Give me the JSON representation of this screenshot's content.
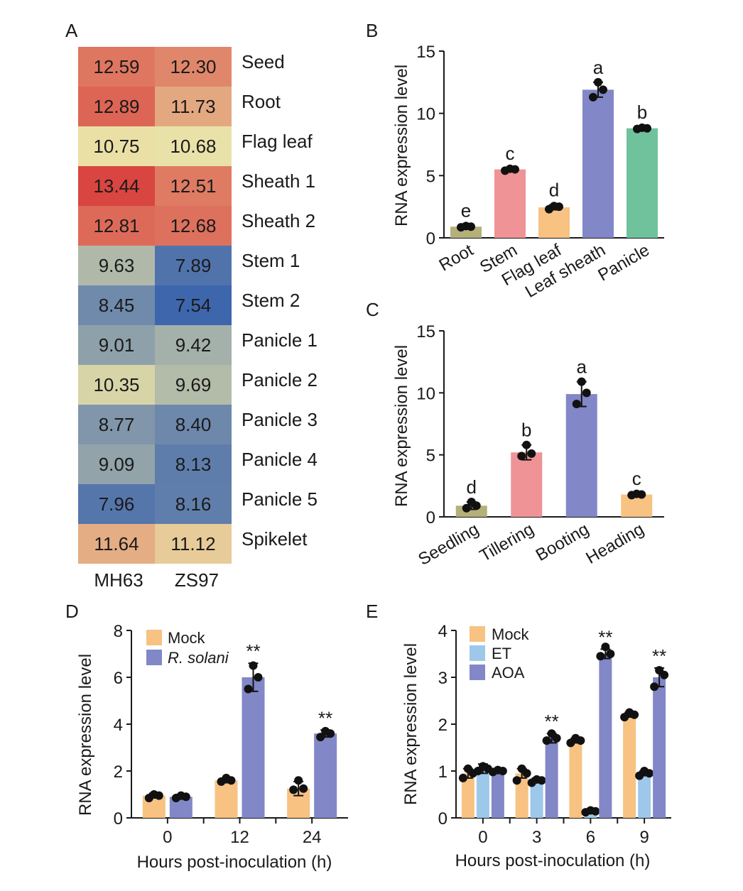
{
  "colors": {
    "olive": "#b5b07a",
    "pink": "#ef9397",
    "orange": "#f7c282",
    "purple": "#8287c7",
    "green": "#6fc29c",
    "lightblue": "#9ec8ea",
    "axis": "#1a1a1a",
    "heat_low": "#3c64ac",
    "heat_mid": "#eae3a8",
    "heat_high": "#d9423e"
  },
  "chart_data": [
    {
      "panel": "A",
      "type": "heatmap",
      "columns": [
        "MH63",
        "ZS97"
      ],
      "rows": [
        "Seed",
        "Root",
        "Flag leaf",
        "Sheath 1",
        "Sheath 2",
        "Stem 1",
        "Stem 2",
        "Panicle 1",
        "Panicle 2",
        "Panicle 3",
        "Panicle 4",
        "Panicle 5",
        "Spikelet"
      ],
      "values": [
        [
          "12.59",
          "12.30"
        ],
        [
          "12.89",
          "11.73"
        ],
        [
          "10.75",
          "10.68"
        ],
        [
          "13.44",
          "12.51"
        ],
        [
          "12.81",
          "12.68"
        ],
        [
          "9.63",
          "7.89"
        ],
        [
          "8.45",
          "7.54"
        ],
        [
          "9.01",
          "9.42"
        ],
        [
          "10.35",
          "9.69"
        ],
        [
          "8.77",
          "8.40"
        ],
        [
          "9.09",
          "8.13"
        ],
        [
          "7.96",
          "8.16"
        ],
        [
          "11.64",
          "11.12"
        ]
      ]
    },
    {
      "panel": "B",
      "type": "bar",
      "ylabel": "RNA expression level",
      "ylim": [
        0,
        15
      ],
      "yticks": [
        "0",
        "5",
        "10",
        "15"
      ],
      "categories": [
        "Root",
        "Stem",
        "Flag leaf",
        "Leaf sheath",
        "Panicle"
      ],
      "values": [
        0.9,
        5.5,
        2.45,
        11.9,
        8.8
      ],
      "err": [
        0.1,
        0.1,
        0.2,
        0.6,
        0.1
      ],
      "points": [
        [
          0.85,
          0.9,
          0.95
        ],
        [
          5.4,
          5.5,
          5.55
        ],
        [
          2.3,
          2.5,
          2.55
        ],
        [
          11.3,
          11.9,
          12.5
        ],
        [
          8.75,
          8.8,
          8.85
        ]
      ],
      "letters": [
        "e",
        "c",
        "d",
        "a",
        "b"
      ],
      "colors": [
        "olive",
        "pink",
        "orange",
        "purple",
        "green"
      ]
    },
    {
      "panel": "C",
      "type": "bar",
      "ylabel": "RNA expression level",
      "ylim": [
        0,
        15
      ],
      "yticks": [
        "0",
        "5",
        "10",
        "15"
      ],
      "categories": [
        "Seedling",
        "Tillering",
        "Booting",
        "Heading"
      ],
      "values": [
        0.9,
        5.2,
        9.9,
        1.8
      ],
      "err": [
        0.3,
        0.6,
        1.0,
        0.1
      ],
      "points": [
        [
          0.7,
          0.9,
          1.2
        ],
        [
          4.9,
          5.1,
          5.8
        ],
        [
          9.1,
          10.0,
          10.9
        ],
        [
          1.75,
          1.8,
          1.85
        ]
      ],
      "letters": [
        "d",
        "b",
        "a",
        "c"
      ],
      "colors": [
        "olive",
        "pink",
        "purple",
        "orange"
      ]
    },
    {
      "panel": "D",
      "type": "bar",
      "ylabel": "RNA expression level",
      "xlabel": "Hours post-inoculation (h)",
      "ylim": [
        0,
        8
      ],
      "yticks": [
        "0",
        "2",
        "4",
        "6",
        "8"
      ],
      "categories": [
        "0",
        "12",
        "24"
      ],
      "legend": [
        "Mock",
        "R. solani"
      ],
      "series": [
        {
          "name": "Mock",
          "color": "orange",
          "values": [
            0.95,
            1.6,
            1.25
          ],
          "err": [
            0.1,
            0.1,
            0.3
          ],
          "points": [
            [
              0.85,
              0.95,
              1.0
            ],
            [
              1.55,
              1.6,
              1.7
            ],
            [
              1.2,
              1.25,
              1.6
            ]
          ]
        },
        {
          "name": "R. solani",
          "color": "purple",
          "values": [
            0.9,
            6.0,
            3.6
          ],
          "err": [
            0.1,
            0.6,
            0.15
          ],
          "points": [
            [
              0.85,
              0.9,
              0.95
            ],
            [
              5.5,
              6.0,
              6.5
            ],
            [
              3.45,
              3.6,
              3.7
            ]
          ]
        }
      ],
      "marks": [
        {
          "group": 1,
          "series": 1,
          "text": "**"
        },
        {
          "group": 2,
          "series": 1,
          "text": "**"
        }
      ]
    },
    {
      "panel": "E",
      "type": "bar",
      "ylabel": "RNA expression level",
      "xlabel": "Hours post-inoculation (h)",
      "ylim": [
        0,
        4
      ],
      "yticks": [
        "0",
        "1",
        "2",
        "3",
        "4"
      ],
      "categories": [
        "0",
        "3",
        "6",
        "9"
      ],
      "legend": [
        "Mock",
        "ET",
        "AOA"
      ],
      "series": [
        {
          "name": "Mock",
          "color": "orange",
          "values": [
            0.95,
            0.95,
            1.65,
            2.2
          ],
          "err": [
            0.1,
            0.1,
            0.05,
            0.05
          ],
          "points": [
            [
              0.85,
              0.95,
              1.05
            ],
            [
              0.8,
              0.95,
              1.05
            ],
            [
              1.6,
              1.65,
              1.7
            ],
            [
              2.15,
              2.2,
              2.25
            ]
          ]
        },
        {
          "name": "ET",
          "color": "lightblue",
          "values": [
            1.05,
            0.8,
            0.15,
            0.95
          ],
          "err": [
            0.1,
            0.05,
            0.02,
            0.05
          ],
          "points": [
            [
              1.0,
              1.05,
              1.1
            ],
            [
              0.75,
              0.8,
              0.82
            ],
            [
              0.12,
              0.14,
              0.16
            ],
            [
              0.9,
              0.95,
              1.0
            ]
          ]
        },
        {
          "name": "AOA",
          "color": "purple",
          "values": [
            1.0,
            1.7,
            3.5,
            3.0
          ],
          "err": [
            0.05,
            0.1,
            0.1,
            0.2
          ],
          "points": [
            [
              0.98,
              1.0,
              1.02
            ],
            [
              1.65,
              1.7,
              1.8
            ],
            [
              3.45,
              3.5,
              3.65
            ],
            [
              2.8,
              3.05,
              3.15
            ]
          ]
        }
      ],
      "marks": [
        {
          "group": 1,
          "series": 2,
          "text": "**"
        },
        {
          "group": 2,
          "series": 2,
          "text": "**"
        },
        {
          "group": 3,
          "series": 2,
          "text": "**"
        }
      ]
    }
  ],
  "panels": {
    "a": {
      "letter": "A"
    },
    "b": {
      "letter": "B",
      "ylabel": "RNA expression level"
    },
    "c": {
      "letter": "C",
      "ylabel": "RNA expression level"
    },
    "d": {
      "letter": "D",
      "ylabel": "RNA expression level",
      "xlabel": "Hours post-inoculation (h)",
      "legend_mock": "Mock",
      "legend_rsolani": "R. solani"
    },
    "e": {
      "letter": "E",
      "ylabel": "RNA expression level",
      "xlabel": "Hours post-inoculation (h)",
      "legend_mock": "Mock",
      "legend_et": "ET",
      "legend_aoa": "AOA"
    }
  }
}
